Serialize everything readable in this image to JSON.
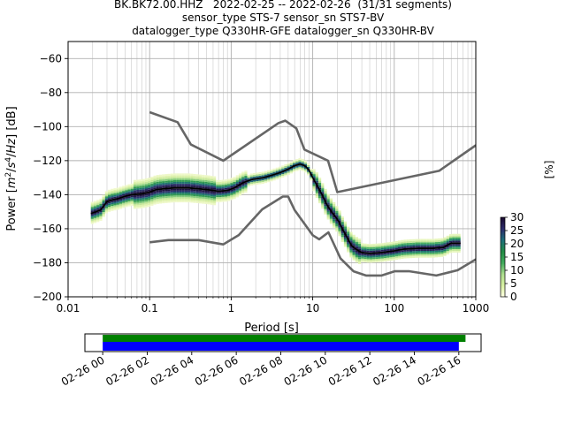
{
  "title_lines": [
    "BK.BK72.00.HHZ   2022-02-25 -- 2022-02-26  (31/31 segments)",
    "sensor_type STS-7 sensor_sn STS7-BV",
    "datalogger_type Q330HR-GFE datalogger_sn Q330HR-BV"
  ],
  "chart_data": [
    {
      "type": "heatmap",
      "title": "BK.BK72.00.HHZ   2022-02-25 -- 2022-02-26  (31/31 segments)",
      "xlabel": "Period [s]",
      "ylabel_parts": [
        "Power [",
        "m",
        "2",
        "/",
        "s",
        "4",
        "/",
        "Hz",
        "] [dB]"
      ],
      "xscale": "log",
      "xlim": [
        0.01,
        1000
      ],
      "ylim": [
        -200,
        -50
      ],
      "xticks": [
        0.01,
        0.1,
        1,
        10,
        100,
        1000
      ],
      "xtick_labels": [
        "0.01",
        "0.1",
        "1",
        "10",
        "100",
        "1000"
      ],
      "yticks": [
        -200,
        -180,
        -160,
        -140,
        -120,
        -100,
        -80,
        -60
      ],
      "ytick_labels": [
        "−200",
        "−180",
        "−160",
        "−140",
        "−120",
        "−100",
        "−80",
        "−60"
      ],
      "grid": true,
      "noise_models": [
        {
          "name": "NHNM",
          "color": "#666666",
          "points": [
            [
              0.1,
              -91.5
            ],
            [
              0.22,
              -97.4
            ],
            [
              0.32,
              -110.5
            ],
            [
              0.8,
              -120
            ],
            [
              3.8,
              -97.9
            ],
            [
              4.6,
              -96.5
            ],
            [
              6.3,
              -101
            ],
            [
              7.9,
              -113.5
            ],
            [
              15.4,
              -120
            ],
            [
              20,
              -138.5
            ],
            [
              354.8,
              -126
            ],
            [
              1000,
              -111
            ]
          ]
        },
        {
          "name": "NLNM",
          "color": "#666666",
          "points": [
            [
              0.1,
              -168
            ],
            [
              0.17,
              -166.7
            ],
            [
              0.4,
              -166.7
            ],
            [
              0.8,
              -169.2
            ],
            [
              1.24,
              -163.7
            ],
            [
              2.4,
              -148.6
            ],
            [
              4.3,
              -141.1
            ],
            [
              5,
              -141.1
            ],
            [
              6,
              -149
            ],
            [
              10,
              -163.8
            ],
            [
              12,
              -166.2
            ],
            [
              15.6,
              -162.1
            ],
            [
              21.9,
              -177.5
            ],
            [
              31.6,
              -185
            ],
            [
              45,
              -187.5
            ],
            [
              70,
              -187.5
            ],
            [
              101,
              -185
            ],
            [
              154,
              -185
            ],
            [
              328,
              -187.5
            ],
            [
              600,
              -184.4
            ],
            [
              1000,
              -178
            ]
          ]
        }
      ],
      "mean_psd": {
        "color": "#000000",
        "points": [
          [
            0.019,
            -151
          ],
          [
            0.022,
            -150
          ],
          [
            0.025,
            -149
          ],
          [
            0.028,
            -146
          ],
          [
            0.03,
            -144
          ],
          [
            0.035,
            -143
          ],
          [
            0.04,
            -142.5
          ],
          [
            0.05,
            -141
          ],
          [
            0.06,
            -140
          ],
          [
            0.08,
            -139.5
          ],
          [
            0.1,
            -138.5
          ],
          [
            0.12,
            -137
          ],
          [
            0.15,
            -136.5
          ],
          [
            0.2,
            -136
          ],
          [
            0.3,
            -136
          ],
          [
            0.5,
            -137
          ],
          [
            0.7,
            -138
          ],
          [
            0.9,
            -137.5
          ],
          [
            1.1,
            -136
          ],
          [
            1.4,
            -133
          ],
          [
            1.8,
            -131
          ],
          [
            2.5,
            -130
          ],
          [
            3.2,
            -128.5
          ],
          [
            4,
            -127
          ],
          [
            5,
            -125
          ],
          [
            6,
            -123
          ],
          [
            7,
            -122
          ],
          [
            8,
            -123
          ],
          [
            9,
            -125.5
          ],
          [
            10,
            -130
          ],
          [
            11,
            -133.5
          ],
          [
            13,
            -140
          ],
          [
            15,
            -146
          ],
          [
            17,
            -150
          ],
          [
            19,
            -153
          ],
          [
            21,
            -156
          ],
          [
            23,
            -160
          ],
          [
            25,
            -163
          ],
          [
            27,
            -166
          ],
          [
            30,
            -170
          ],
          [
            35,
            -172.5
          ],
          [
            40,
            -174
          ],
          [
            50,
            -174.5
          ],
          [
            70,
            -174
          ],
          [
            100,
            -173
          ],
          [
            130,
            -172
          ],
          [
            200,
            -171.5
          ],
          [
            300,
            -171.5
          ],
          [
            400,
            -171
          ],
          [
            500,
            -168.5
          ],
          [
            650,
            -168.5
          ]
        ]
      },
      "colorbar": {
        "label": "[%]",
        "range": [
          0,
          30
        ],
        "ticks": [
          0,
          5,
          10,
          15,
          20,
          25,
          30
        ],
        "colors": [
          "#ffffe5",
          "#d9f0a3",
          "#addd8e",
          "#41ab5d",
          "#238b45",
          "#1d6f7a",
          "#2c2c6c",
          "#1a0a2e"
        ]
      }
    },
    {
      "type": "bar",
      "title": "",
      "x_tick_labels": [
        "02-26 00",
        "02-26 02",
        "02-26 04",
        "02-26 06",
        "02-26 08",
        "02-26 10",
        "02-26 12",
        "02-26 14",
        "02-26 16"
      ],
      "x_tick_hours": [
        0,
        2,
        4,
        6,
        8,
        10,
        12,
        14,
        16
      ],
      "xlim_hours": [
        -0.8,
        17.0
      ],
      "series": [
        {
          "color": "#008000",
          "start_hour": 0,
          "end_hour": 16.3
        },
        {
          "color": "#0000ff",
          "start_hour": 0,
          "end_hour": 16.0
        }
      ]
    }
  ]
}
